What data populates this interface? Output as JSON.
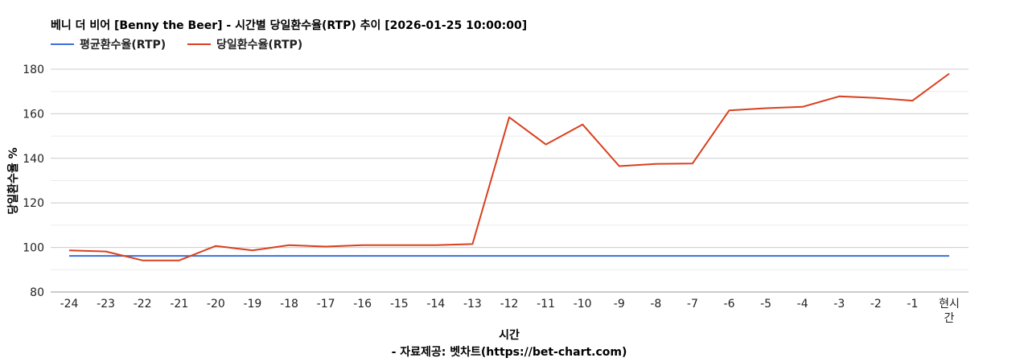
{
  "chart_data": {
    "type": "line",
    "title": "베니 더 비어 [Benny the Beer] - 시간별 당일환수율(RTP) 추이 [2026-01-25 10:00:00]",
    "xlabel": "시간",
    "ylabel": "당일환수율 %",
    "source": "- 자료제공: 벳차트(https://bet-chart.com)",
    "categories": [
      "-24",
      "-23",
      "-22",
      "-21",
      "-20",
      "-19",
      "-18",
      "-17",
      "-16",
      "-15",
      "-14",
      "-13",
      "-12",
      "-11",
      "-10",
      "-9",
      "-8",
      "-7",
      "-6",
      "-5",
      "-4",
      "-3",
      "-2",
      "-1",
      "현시간"
    ],
    "ylim": [
      80,
      180
    ],
    "yticks": [
      80,
      100,
      120,
      140,
      160,
      180
    ],
    "grid": true,
    "legend_position": "top-left",
    "series": [
      {
        "name": "평균환수율(RTP)",
        "color": "#3b6fd8",
        "values": [
          96.2,
          96.2,
          96.2,
          96.2,
          96.2,
          96.2,
          96.2,
          96.2,
          96.2,
          96.2,
          96.2,
          96.2,
          96.2,
          96.2,
          96.2,
          96.2,
          96.2,
          96.2,
          96.2,
          96.2,
          96.2,
          96.2,
          96.2,
          96.2,
          96.2
        ]
      },
      {
        "name": "당일환수율(RTP)",
        "color": "#d9401e",
        "values": [
          98.7,
          98.2,
          94.2,
          94.2,
          100.7,
          98.7,
          101.0,
          100.4,
          101.0,
          101.0,
          101.0,
          101.5,
          158.4,
          146.2,
          155.2,
          136.5,
          137.5,
          137.7,
          161.5,
          162.5,
          163.1,
          167.8,
          167.1,
          165.9,
          178.0
        ]
      }
    ]
  }
}
